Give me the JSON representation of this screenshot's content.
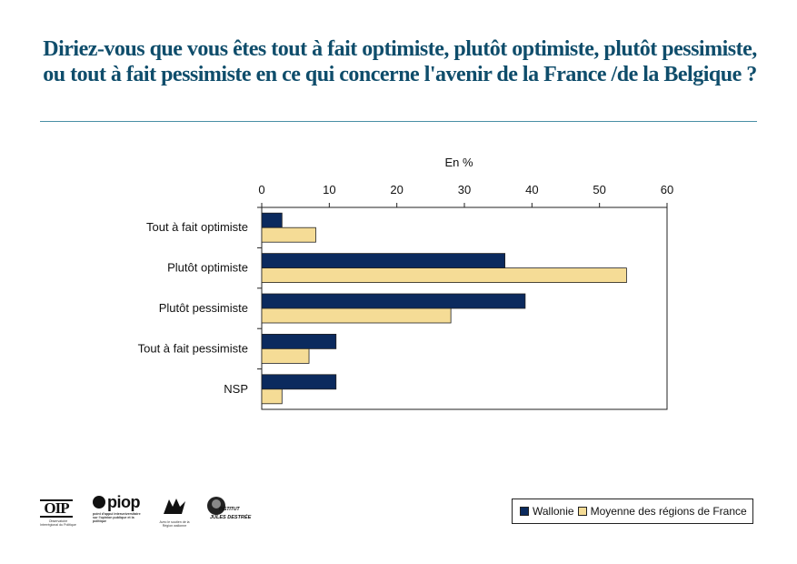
{
  "title": "Diriez-vous que vous êtes tout à fait optimiste, plutôt optimiste, plutôt pessimiste, ou tout à fait pessimiste en ce qui concerne l'avenir de la France /de la Belgique ?",
  "logos": {
    "oip": "OIP",
    "oip_caption": "Observatoire Interrégional du Politique",
    "piop": "piop",
    "piop_caption": "point d'appui interuniversitaire sur l'opinion publique et la politique",
    "wallonie_caption": "Avec le soutien de la Région wallonne",
    "ijd_line1": "INSTITUT",
    "ijd_line2": "JULES DESTRÉE"
  },
  "colors": {
    "wallonie": "#0b2a5e",
    "france": "#f5dc96",
    "title": "#0f4d6b"
  },
  "chart_data": {
    "type": "bar",
    "orientation": "horizontal",
    "title": "Diriez-vous que vous êtes tout à fait optimiste, plutôt optimiste, plutôt pessimiste, ou tout à fait pessimiste en ce qui concerne l'avenir de la France /de la Belgique ?",
    "xlabel": "En %",
    "ylabel": "",
    "xlim": [
      0,
      60
    ],
    "xticks": [
      0,
      10,
      20,
      30,
      40,
      50,
      60
    ],
    "grid": false,
    "legend_position": "bottom-right",
    "categories": [
      "Tout à fait optimiste",
      "Plutôt optimiste",
      "Plutôt pessimiste",
      "Tout à fait pessimiste",
      "NSP"
    ],
    "series": [
      {
        "name": "Wallonie",
        "color": "#0b2a5e",
        "values": [
          3,
          36,
          39,
          11,
          11
        ]
      },
      {
        "name": "Moyenne des régions de France",
        "color": "#f5dc96",
        "values": [
          8,
          54,
          28,
          7,
          3
        ]
      }
    ]
  }
}
